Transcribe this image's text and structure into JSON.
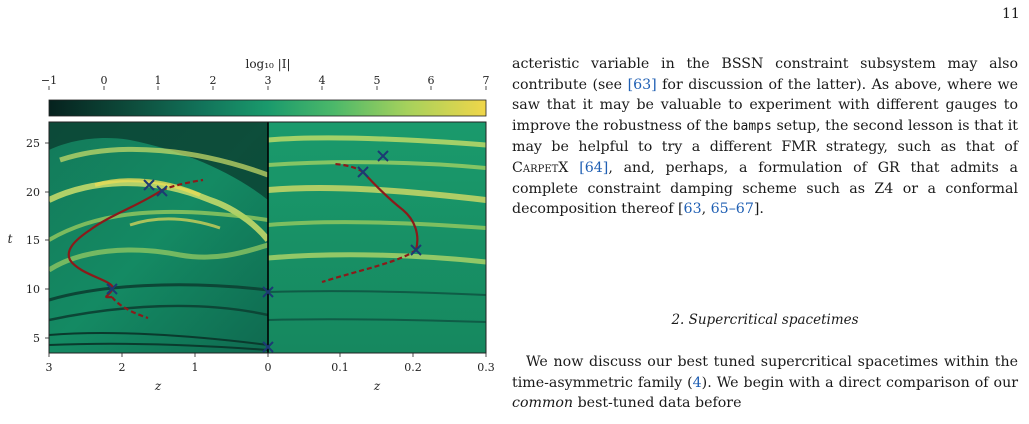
{
  "page_number": "11",
  "figure": {
    "colorbar": {
      "label": "log₁₀ |I|",
      "ticks": [
        "−1",
        "0",
        "1",
        "2",
        "3",
        "4",
        "5",
        "6",
        "7"
      ],
      "range": [
        -1,
        7
      ],
      "colors": [
        "#06221e",
        "#0d4a3a",
        "#12735a",
        "#1a9a6c",
        "#4bb86a",
        "#a6d15c",
        "#f0d64a"
      ]
    },
    "left_panel": {
      "xlabel": "z",
      "xticks": [
        "3",
        "2",
        "1",
        "0"
      ],
      "ylabel": "t",
      "yticks": [
        "25",
        "20",
        "15",
        "10",
        "5"
      ],
      "xlim": [
        3,
        0
      ],
      "ylim": [
        3,
        27
      ]
    },
    "right_panel": {
      "xlabel": "z",
      "xticks": [
        "0",
        "0.1",
        "0.2",
        "0.3"
      ],
      "xlim": [
        0,
        0.3
      ],
      "ylim": [
        3,
        27
      ]
    },
    "colors": {
      "curve": "#8b1a1a",
      "marker": "#1c3a73"
    }
  },
  "text": {
    "para1": [
      {
        "t": "acteristic variable in the BSSN constraint subsystem may also contribute (see "
      },
      {
        "t": "[63]",
        "c": "cite"
      },
      {
        "t": " for discussion of the latter). As above, where we saw that it may be valuable to experiment with different gauges to improve the robustness of the "
      },
      {
        "t": "bamps",
        "c": "mono"
      },
      {
        "t": " setup, the second lesson is that it may be helpful to try a different FMR strategy, such as that of "
      },
      {
        "t": "CarpetX",
        "c": "sc"
      },
      {
        "t": " "
      },
      {
        "t": "[64]",
        "c": "cite"
      },
      {
        "t": ", and, perhaps, a formulation of GR that admits a complete constraint damping scheme such as Z4 or a conformal decomposition thereof ["
      },
      {
        "t": "63",
        "c": "cite"
      },
      {
        "t": ", "
      },
      {
        "t": "65–67",
        "c": "cite"
      },
      {
        "t": "]."
      }
    ],
    "section_heading": "2.   Supercritical spacetimes",
    "para2": [
      {
        "t": "We now discuss our best tuned supercritical spacetimes within the time-asymmetric family ("
      },
      {
        "t": "4",
        "c": "cite"
      },
      {
        "t": "). We begin with a direct comparison of our "
      },
      {
        "t": "common",
        "c": "em"
      },
      {
        "t": " best-tuned data before"
      }
    ]
  }
}
